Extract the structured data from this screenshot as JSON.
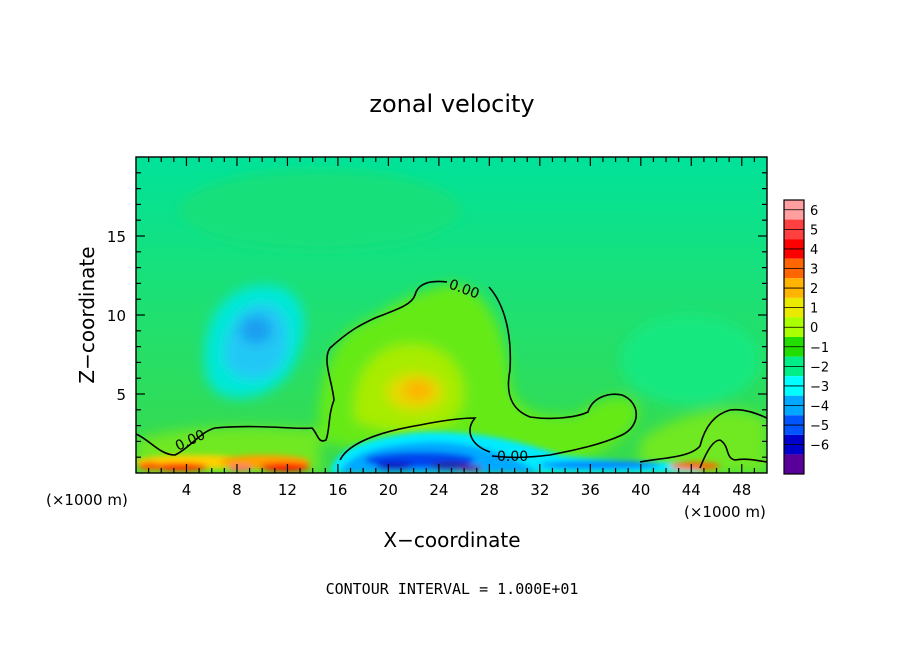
{
  "chart_data": {
    "type": "heatmap",
    "title": "zonal velocity",
    "xlabel": "X−coordinate",
    "ylabel": "Z−coordinate",
    "x_unit_left": "(×1000 m)",
    "x_unit_right": "(×1000 m)",
    "footer": "CONTOUR INTERVAL = 1.000E+01",
    "xlim": [
      0,
      50
    ],
    "ylim": [
      0,
      20
    ],
    "xticks": [
      4,
      8,
      12,
      16,
      20,
      24,
      28,
      32,
      36,
      40,
      44,
      48
    ],
    "xtick_labels": [
      "4",
      "8",
      "12",
      "16",
      "20",
      "24",
      "28",
      "32",
      "36",
      "40",
      "44",
      "48"
    ],
    "yticks": [
      5,
      10,
      15
    ],
    "ytick_labels": [
      "5",
      "10",
      "15"
    ],
    "colorbar": {
      "levels": [
        6,
        5,
        4,
        3,
        2,
        1,
        0,
        -1,
        -2,
        -3,
        -4,
        -5,
        -6
      ],
      "labels": [
        "6",
        "5",
        "4",
        "3",
        "2",
        "1",
        "0",
        "−1",
        "−2",
        "−3",
        "−4",
        "−5",
        "−6"
      ],
      "colors": [
        "#ff9f9f",
        "#ff4040",
        "#ff0000",
        "#ff6600",
        "#ffb400",
        "#eaea00",
        "#aaff00",
        "#22dd00",
        "#00ee88",
        "#00ffff",
        "#00a8ff",
        "#0055ff",
        "#0000cc",
        "#5a009a"
      ]
    },
    "contour_label": "0.00",
    "contour_label_count": 3
  }
}
